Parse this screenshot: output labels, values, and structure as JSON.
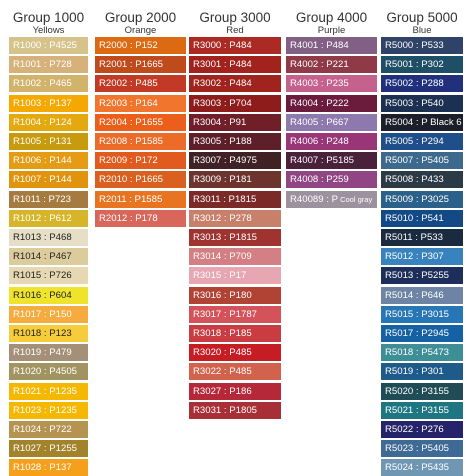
{
  "groups": [
    {
      "title": "Group 1000",
      "subtitle": "Yellows",
      "swatches": [
        {
          "label": "R1000 : P4525",
          "color": "#d5c38a"
        },
        {
          "label": "R1001 : P728",
          "color": "#d6b27a"
        },
        {
          "label": "R1002 : P465",
          "color": "#d2b36c"
        },
        {
          "label": "R1003 : P137",
          "color": "#f5a800"
        },
        {
          "label": "R1004 : P124",
          "color": "#e3a90f"
        },
        {
          "label": "R1005 : P131",
          "color": "#c89a0e"
        },
        {
          "label": "R1006 : P144",
          "color": "#e59b13"
        },
        {
          "label": "R1007 : P144",
          "color": "#e0930c"
        },
        {
          "label": "R1011 : P723",
          "color": "#a67b3f"
        },
        {
          "label": "R1012 : P612",
          "color": "#d7b52a"
        },
        {
          "label": "R1013 : P468",
          "color": "#e7dec7"
        },
        {
          "label": "R1014 : P467",
          "color": "#dccb9d"
        },
        {
          "label": "R1015 : P726",
          "color": "#e6d8b2"
        },
        {
          "label": "R1016 : P604",
          "color": "#efe32c"
        },
        {
          "label": "R1017 : P150",
          "color": "#f5ab3e"
        },
        {
          "label": "R1018 : P123",
          "color": "#f7cc3a"
        },
        {
          "label": "R1019 : P479",
          "color": "#a48f78"
        },
        {
          "label": "R1020 : P4505",
          "color": "#a29462"
        },
        {
          "label": "R1021 : P1235",
          "color": "#f5b800"
        },
        {
          "label": "R1023 : P1235",
          "color": "#f5b700"
        },
        {
          "label": "R1024 : P722",
          "color": "#b59350"
        },
        {
          "label": "R1027 : P1255",
          "color": "#a3822c"
        },
        {
          "label": "R1028 : P137",
          "color": "#f59f1a"
        }
      ]
    },
    {
      "title": "Group 2000",
      "subtitle": "Orange",
      "swatches": [
        {
          "label": "R2000 : P152",
          "color": "#dc6a12"
        },
        {
          "label": "R2001 : P1665",
          "color": "#bf4a1c"
        },
        {
          "label": "R2002 : P485",
          "color": "#c23a25"
        },
        {
          "label": "R2003 : P164",
          "color": "#f2752e"
        },
        {
          "label": "R2004 : P1655",
          "color": "#ec5f1a"
        },
        {
          "label": "R2008 : P1585",
          "color": "#ec6b29"
        },
        {
          "label": "R2009 : P172",
          "color": "#e15a1e"
        },
        {
          "label": "R2010 : P1665",
          "color": "#d9601f"
        },
        {
          "label": "R2011 : P1585",
          "color": "#e87421"
        },
        {
          "label": "R2012 : P178",
          "color": "#d8665a"
        }
      ]
    },
    {
      "title": "Group 3000",
      "subtitle": "Red",
      "swatches": [
        {
          "label": "R3000 : P484",
          "color": "#ab2a24"
        },
        {
          "label": "R3001 : P484",
          "color": "#a2231d"
        },
        {
          "label": "R3002 : P484",
          "color": "#a1231e"
        },
        {
          "label": "R3003 : P704",
          "color": "#8d1c1b"
        },
        {
          "label": "R3004 : P91",
          "color": "#701f29"
        },
        {
          "label": "R3005 : P188",
          "color": "#5e2028"
        },
        {
          "label": "R3007 : P4975",
          "color": "#402225"
        },
        {
          "label": "R3009 : P181",
          "color": "#6d342d"
        },
        {
          "label": "R3011 : P1815",
          "color": "#7b2a28"
        },
        {
          "label": "R3012 : P278",
          "color": "#c9806b"
        },
        {
          "label": "R3013 : P1815",
          "color": "#9e3330"
        },
        {
          "label": "R3014 : P709",
          "color": "#d37f84"
        },
        {
          "label": "R3015 : P17",
          "color": "#e6a6b2"
        },
        {
          "label": "R3016 : P180",
          "color": "#b04334"
        },
        {
          "label": "R3017 : P1787",
          "color": "#d4535a"
        },
        {
          "label": "R3018 : P185",
          "color": "#c93c42"
        },
        {
          "label": "R3020 : P485",
          "color": "#c51d23"
        },
        {
          "label": "R3022 : P485",
          "color": "#d2624d"
        },
        {
          "label": "R3027 : P186",
          "color": "#b42839"
        },
        {
          "label": "R3031 : P1805",
          "color": "#a82f36"
        }
      ]
    },
    {
      "title": "Group 4000",
      "subtitle": "Purple",
      "swatches": [
        {
          "label": "R4001 : P484",
          "color": "#826086"
        },
        {
          "label": "R4002 : P221",
          "color": "#8f3a46"
        },
        {
          "label": "R4003 : P235",
          "color": "#c4618c"
        },
        {
          "label": "R4004 : P222",
          "color": "#6b1c3c"
        },
        {
          "label": "R4005 : P667",
          "color": "#8d79ad"
        },
        {
          "label": "R4006 : P248",
          "color": "#983678"
        },
        {
          "label": "R4007 : P5185",
          "color": "#4a203b"
        },
        {
          "label": "R4008 : P259",
          "color": "#904684"
        },
        {
          "label": "R40089 : P",
          "small": "Cool gray",
          "color": "#9b919f"
        }
      ]
    },
    {
      "title": "Group 5000",
      "subtitle": "Blue",
      "swatches": [
        {
          "label": "R5000 : P533",
          "color": "#2f4268"
        },
        {
          "label": "R5001 : P302",
          "color": "#1f4f67"
        },
        {
          "label": "R5002 : P288",
          "color": "#20307d"
        },
        {
          "label": "R5003 : P540",
          "color": "#1c3151"
        },
        {
          "label": "R5004 : P Black 6",
          "color": "#1c1e2a"
        },
        {
          "label": "R5005 : P294",
          "color": "#1f4f8a"
        },
        {
          "label": "R5007 : P5405",
          "color": "#3d6a8c"
        },
        {
          "label": "R5008 : P433",
          "color": "#2c3a45"
        },
        {
          "label": "R5009 : P3025",
          "color": "#2a6089"
        },
        {
          "label": "R5010 : P541",
          "color": "#134a86"
        },
        {
          "label": "R5011 : P533",
          "color": "#1a2b40"
        },
        {
          "label": "R5012 : P307",
          "color": "#3883bd"
        },
        {
          "label": "R5013 : P5255",
          "color": "#1d2e5a"
        },
        {
          "label": "R5014 : P646",
          "color": "#6d84a4"
        },
        {
          "label": "R5015 : P3015",
          "color": "#2776b5"
        },
        {
          "label": "R5017 : P2945",
          "color": "#1561a3"
        },
        {
          "label": "R5018 : P5473",
          "color": "#3d8e96"
        },
        {
          "label": "R5019 : P301",
          "color": "#1f5b8a"
        },
        {
          "label": "R5020 : P3155",
          "color": "#1f4c55"
        },
        {
          "label": "R5021 : P3155",
          "color": "#1d7682"
        },
        {
          "label": "R5022 : P276",
          "color": "#25246b"
        },
        {
          "label": "R5023 : P5405",
          "color": "#3f6a96"
        },
        {
          "label": "R5024 : P5435",
          "color": "#6f97b4"
        }
      ]
    }
  ]
}
